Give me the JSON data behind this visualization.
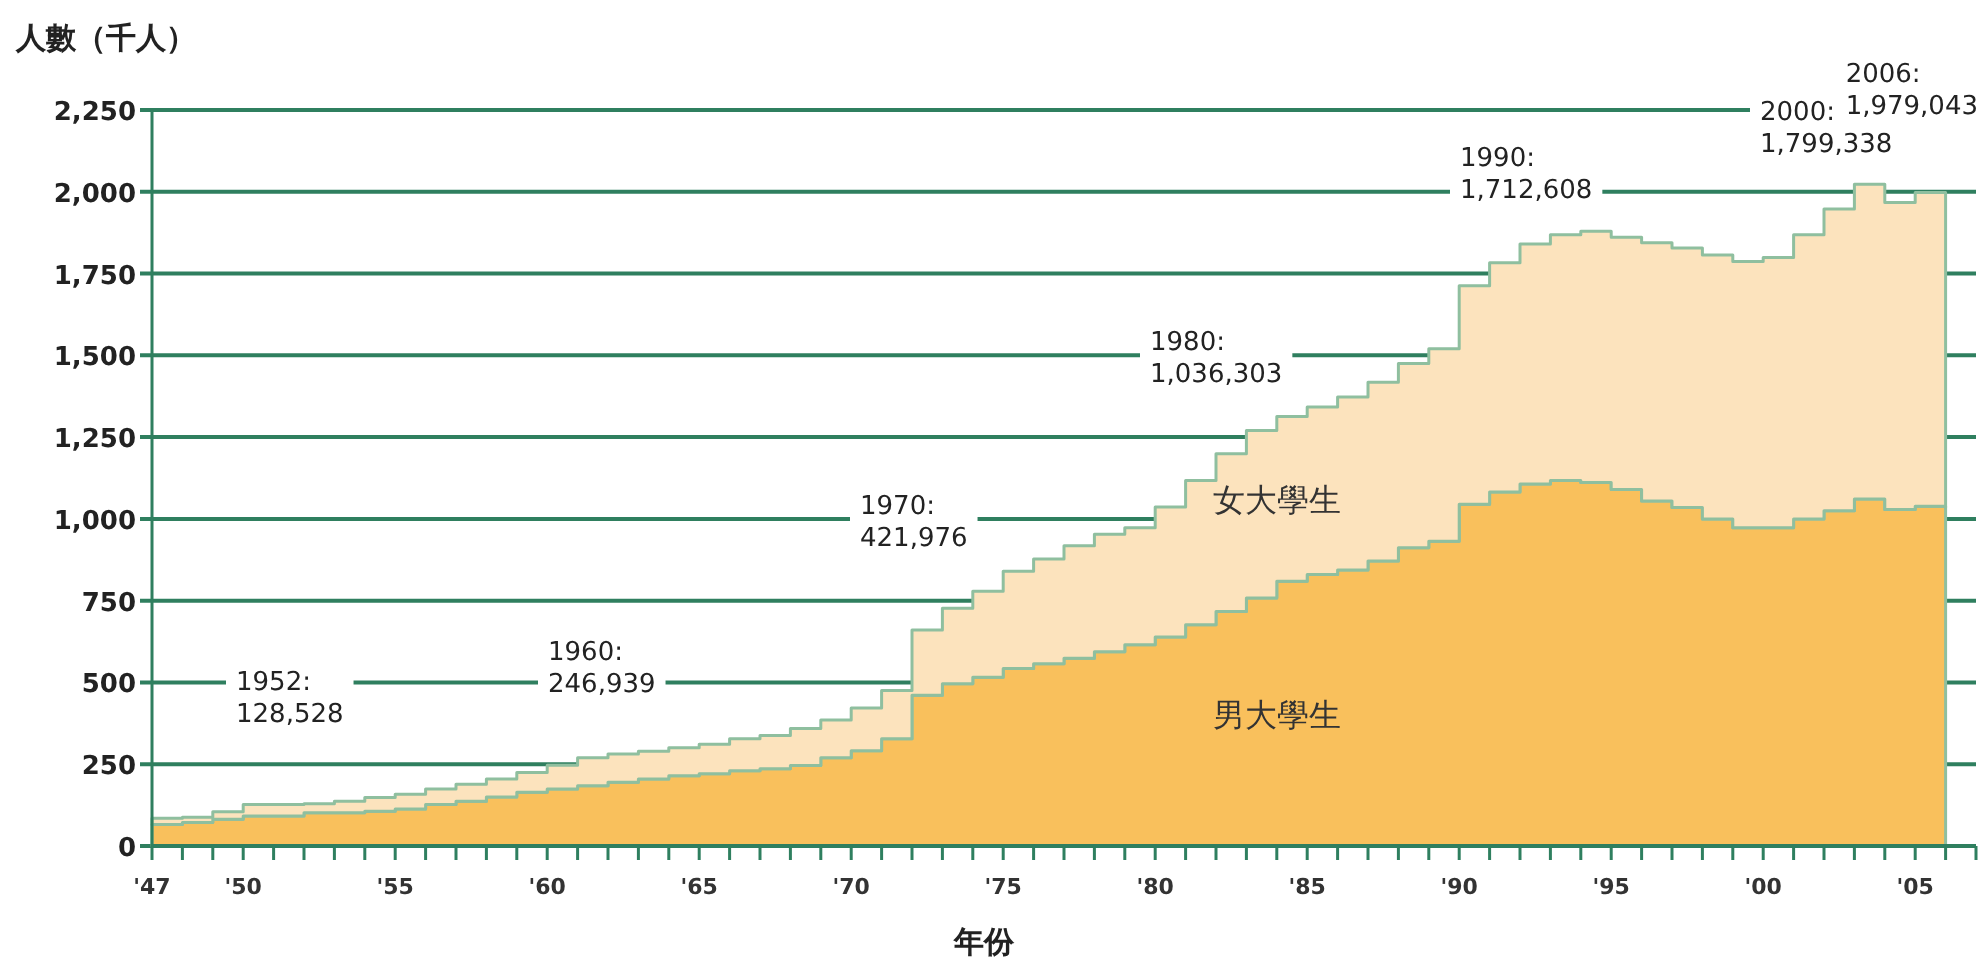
{
  "chart_data": {
    "type": "area",
    "stacked": true,
    "ylabel": "人數（千人）",
    "xlabel": "年份",
    "grid": "y",
    "x": [
      1947,
      1948,
      1949,
      1950,
      1951,
      1952,
      1953,
      1954,
      1955,
      1956,
      1957,
      1958,
      1959,
      1960,
      1961,
      1962,
      1963,
      1964,
      1965,
      1966,
      1967,
      1968,
      1969,
      1970,
      1971,
      1972,
      1973,
      1974,
      1975,
      1976,
      1977,
      1978,
      1979,
      1980,
      1981,
      1982,
      1983,
      1984,
      1985,
      1986,
      1987,
      1988,
      1989,
      1990,
      1991,
      1992,
      1993,
      1994,
      1995,
      1996,
      1997,
      1998,
      1999,
      2000,
      2001,
      2002,
      2003,
      2004,
      2005,
      2006
    ],
    "series": [
      {
        "name": "男大學生",
        "color": "#f9c05c",
        "values": [
          66,
          72,
          82,
          92,
          92,
          102,
          102,
          106,
          113,
          127,
          137,
          150,
          164,
          174,
          184,
          195,
          205,
          215,
          221,
          230,
          236,
          246,
          270,
          291,
          328,
          461,
          496,
          516,
          543,
          557,
          574,
          594,
          615,
          639,
          676,
          717,
          758,
          809,
          830,
          844,
          871,
          912,
          932,
          1045,
          1082,
          1107,
          1117,
          1111,
          1090,
          1055,
          1035,
          1000,
          973,
          973,
          1000,
          1025,
          1061,
          1029,
          1039,
          1035
        ]
      },
      {
        "name": "女大學生",
        "color": "#fce3bd",
        "values": [
          19,
          16,
          23,
          35,
          35,
          27,
          35,
          42,
          45,
          47,
          52,
          55,
          61,
          73,
          86,
          86,
          85,
          85,
          90,
          98,
          102,
          113,
          115,
          131,
          147,
          199,
          231,
          263,
          297,
          320,
          344,
          359,
          358,
          397,
          441,
          482,
          512,
          504,
          512,
          529,
          547,
          563,
          588,
          668,
          701,
          733,
          752,
          768,
          771,
          789,
          793,
          807,
          814,
          826,
          869,
          922,
          962,
          938,
          959,
          944
        ]
      }
    ],
    "xlim": [
      1947,
      2007
    ],
    "xticks": [
      {
        "value": 1947,
        "label": "'47"
      },
      {
        "value": 1948,
        "label": null
      },
      {
        "value": 1949,
        "label": null
      },
      {
        "value": 1950,
        "label": "'50"
      },
      {
        "value": 1951,
        "label": null
      },
      {
        "value": 1952,
        "label": null
      },
      {
        "value": 1953,
        "label": null
      },
      {
        "value": 1954,
        "label": null
      },
      {
        "value": 1955,
        "label": "'55"
      },
      {
        "value": 1956,
        "label": null
      },
      {
        "value": 1957,
        "label": null
      },
      {
        "value": 1958,
        "label": null
      },
      {
        "value": 1959,
        "label": null
      },
      {
        "value": 1960,
        "label": "'60"
      },
      {
        "value": 1961,
        "label": null
      },
      {
        "value": 1962,
        "label": null
      },
      {
        "value": 1963,
        "label": null
      },
      {
        "value": 1964,
        "label": null
      },
      {
        "value": 1965,
        "label": "'65"
      },
      {
        "value": 1966,
        "label": null
      },
      {
        "value": 1967,
        "label": null
      },
      {
        "value": 1968,
        "label": null
      },
      {
        "value": 1969,
        "label": null
      },
      {
        "value": 1970,
        "label": "'70"
      },
      {
        "value": 1971,
        "label": null
      },
      {
        "value": 1972,
        "label": null
      },
      {
        "value": 1973,
        "label": null
      },
      {
        "value": 1974,
        "label": null
      },
      {
        "value": 1975,
        "label": "'75"
      },
      {
        "value": 1976,
        "label": null
      },
      {
        "value": 1977,
        "label": null
      },
      {
        "value": 1978,
        "label": null
      },
      {
        "value": 1979,
        "label": null
      },
      {
        "value": 1980,
        "label": "'80"
      },
      {
        "value": 1981,
        "label": null
      },
      {
        "value": 1982,
        "label": null
      },
      {
        "value": 1983,
        "label": null
      },
      {
        "value": 1984,
        "label": null
      },
      {
        "value": 1985,
        "label": "'85"
      },
      {
        "value": 1986,
        "label": null
      },
      {
        "value": 1987,
        "label": null
      },
      {
        "value": 1988,
        "label": null
      },
      {
        "value": 1989,
        "label": null
      },
      {
        "value": 1990,
        "label": "'90"
      },
      {
        "value": 1991,
        "label": null
      },
      {
        "value": 1992,
        "label": null
      },
      {
        "value": 1993,
        "label": null
      },
      {
        "value": 1994,
        "label": null
      },
      {
        "value": 1995,
        "label": "'95"
      },
      {
        "value": 1996,
        "label": null
      },
      {
        "value": 1997,
        "label": null
      },
      {
        "value": 1998,
        "label": null
      },
      {
        "value": 1999,
        "label": null
      },
      {
        "value": 2000,
        "label": "'00"
      },
      {
        "value": 2001,
        "label": null
      },
      {
        "value": 2002,
        "label": null
      },
      {
        "value": 2003,
        "label": null
      },
      {
        "value": 2004,
        "label": null
      },
      {
        "value": 2005,
        "label": "'05"
      },
      {
        "value": 2006,
        "label": null
      },
      {
        "value": 2007,
        "label": null
      }
    ],
    "ylim": [
      0,
      2250
    ],
    "yticks": [
      0,
      250,
      500,
      750,
      {
        "value": 1000,
        "label": "1,000"
      },
      {
        "value": 1250,
        "label": "1,250"
      },
      {
        "value": 1500,
        "label": "1,500"
      },
      {
        "value": 1750,
        "label": "1,750"
      },
      {
        "value": 2000,
        "label": "2,000"
      },
      {
        "value": 2250,
        "label": "2,250"
      }
    ],
    "annotations": [
      "1952: 128,528",
      "1960: 246,939",
      "1970: 421,976",
      "1980: 1,036,303",
      "1990: 1,712,608",
      "2000: 1,799,338",
      "2006: 1,979,043"
    ]
  }
}
